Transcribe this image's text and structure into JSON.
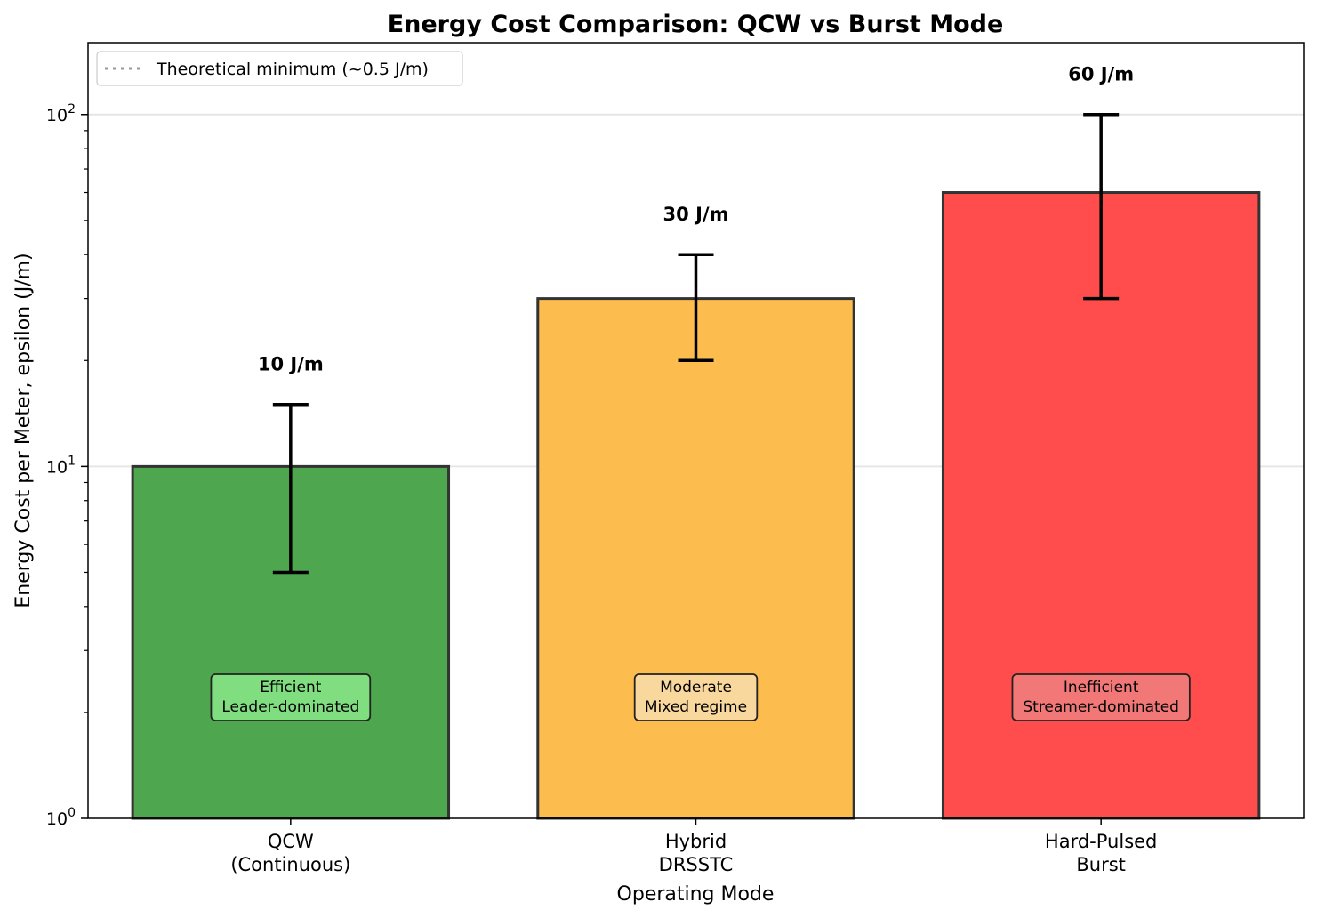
{
  "chart_data": {
    "type": "bar",
    "title": "Energy Cost Comparison: QCW vs Burst Mode",
    "xlabel": "Operating Mode",
    "ylabel": "Energy Cost per Meter, epsilon (J/m)",
    "yscale": "log",
    "ylim": [
      1,
      160
    ],
    "yticks": [
      {
        "value": 1,
        "base": "10",
        "exp": "0"
      },
      {
        "value": 10,
        "base": "10",
        "exp": "1"
      },
      {
        "value": 100,
        "base": "10",
        "exp": "2"
      }
    ],
    "grid": "horizontal major",
    "categories": [
      {
        "line1": "QCW",
        "line2": "(Continuous)"
      },
      {
        "line1": "Hybrid",
        "line2": "DRSSTC"
      },
      {
        "line1": "Hard-Pulsed",
        "line2": "Burst"
      }
    ],
    "values": [
      10,
      30,
      60
    ],
    "error_low": [
      5,
      20,
      30
    ],
    "error_high": [
      15,
      40,
      100
    ],
    "value_labels": [
      "10 J/m",
      "30 J/m",
      "60 J/m"
    ],
    "bar_colors": [
      "#4ea74e",
      "#fdbd4e",
      "#ff4c4c"
    ],
    "annotations": [
      {
        "line1": "Efficient",
        "line2": "Leader-dominated",
        "fill": "#80de80"
      },
      {
        "line1": "Moderate",
        "line2": "Mixed regime",
        "fill": "#f9d89e"
      },
      {
        "line1": "Inefficient",
        "line2": "Streamer-dominated",
        "fill": "#f27878"
      }
    ],
    "legend": {
      "placement": "top-left",
      "entries": [
        {
          "label": "Theoretical minimum (~0.5 J/m)",
          "style": "dotted",
          "color": "#999999"
        }
      ]
    }
  }
}
